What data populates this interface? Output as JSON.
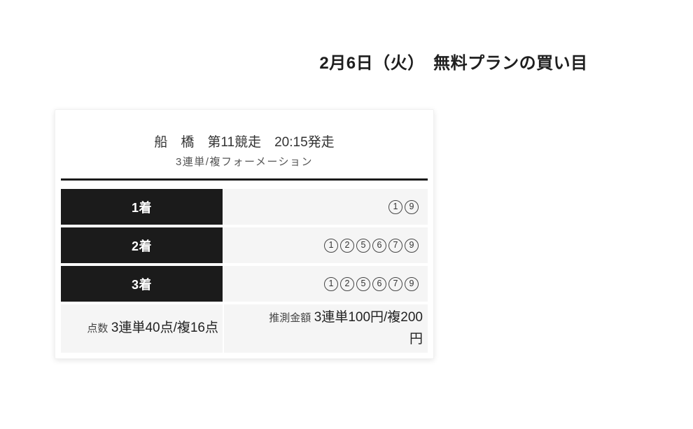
{
  "page": {
    "title": "2月6日（火）　無料プランの買い目"
  },
  "card": {
    "race_title": "船　橋　第11競走　20:15発走",
    "bet_type": "3連単/複フォーメーション",
    "rows": [
      {
        "label": "1着",
        "numbers": [
          "1",
          "9"
        ]
      },
      {
        "label": "2着",
        "numbers": [
          "1",
          "2",
          "5",
          "6",
          "7",
          "9"
        ]
      },
      {
        "label": "3着",
        "numbers": [
          "1",
          "2",
          "5",
          "6",
          "7",
          "9"
        ]
      }
    ],
    "summary": {
      "points_label": "点数",
      "points_value": "3連単40点/複16点",
      "amount_label": "推測金額",
      "amount_value": "3連単100円/複200円"
    },
    "colors": {
      "label_cell_bg": "#1b1b1b",
      "label_cell_text": "#ffffff",
      "value_cell_bg": "#f5f5f5",
      "divider": "#1b1b1b",
      "title_text": "#1e1e1e",
      "body_text": "#333333"
    }
  }
}
